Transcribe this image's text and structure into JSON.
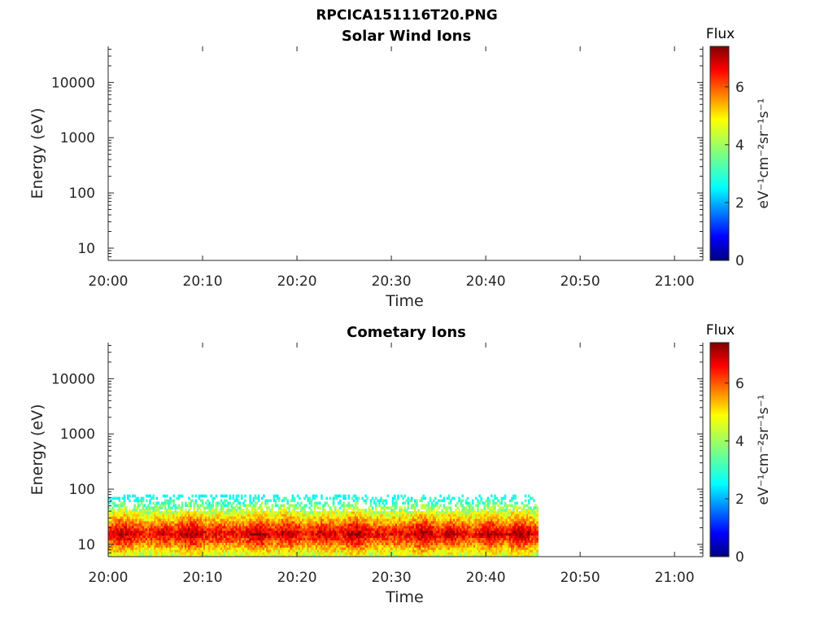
{
  "figure": {
    "title": "RPCICA151116T20.PNG"
  },
  "chart_data": [
    {
      "type": "heatmap",
      "title": "Solar Wind Ions",
      "xlabel": "Time",
      "ylabel": "Energy (eV)",
      "x_ticks": [
        "20:00",
        "20:10",
        "20:20",
        "20:30",
        "20:40",
        "20:50",
        "21:00"
      ],
      "x_range_minutes": [
        0,
        63
      ],
      "y_scale": "log",
      "y_ticks": [
        10,
        100,
        1000,
        10000
      ],
      "y_tick_labels": [
        "10",
        "100",
        "1000",
        "10000"
      ],
      "y_range": [
        6,
        45000
      ],
      "data_present": false,
      "colorbar": {
        "title": "Flux",
        "unit_label": "eV⁻¹cm⁻²sr⁻¹s⁻¹",
        "ticks": [
          0,
          2,
          4,
          6
        ],
        "tick_labels": [
          "0",
          "2",
          "4",
          "6"
        ],
        "range": [
          0,
          7.4
        ],
        "colormap": "jet"
      }
    },
    {
      "type": "heatmap",
      "title": "Cometary Ions",
      "xlabel": "Time",
      "ylabel": "Energy (eV)",
      "x_ticks": [
        "20:00",
        "20:10",
        "20:20",
        "20:30",
        "20:40",
        "20:50",
        "21:00"
      ],
      "x_range_minutes": [
        0,
        63
      ],
      "y_scale": "log",
      "y_ticks": [
        10,
        100,
        1000,
        10000
      ],
      "y_tick_labels": [
        "10",
        "100",
        "1000",
        "10000"
      ],
      "y_range": [
        6,
        45000
      ],
      "data_present": true,
      "data_time_range_minutes": [
        0,
        45.5
      ],
      "data_energy_range": [
        6,
        80
      ],
      "peak_flux_energy_range": [
        10,
        25
      ],
      "colorbar": {
        "title": "Flux",
        "unit_label": "eV⁻¹cm⁻²sr⁻¹s⁻¹",
        "ticks": [
          0,
          2,
          4,
          6
        ],
        "tick_labels": [
          "0",
          "2",
          "4",
          "6"
        ],
        "range": [
          0,
          7.4
        ],
        "colormap": "jet"
      }
    }
  ]
}
